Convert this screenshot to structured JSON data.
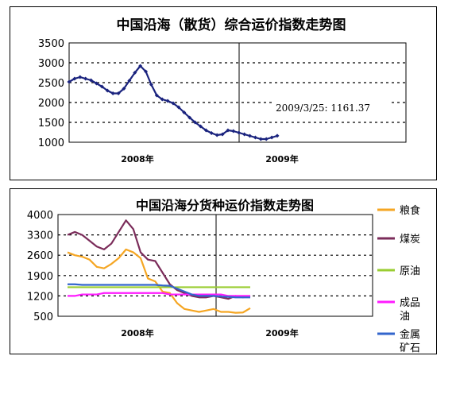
{
  "chart_data": [
    {
      "type": "line",
      "title": "中国沿海（散货）综合运价指数走势图",
      "ylim": [
        1000,
        3500
      ],
      "yticks": [
        "3500",
        "3000",
        "2500",
        "2000",
        "1500",
        "1000"
      ],
      "xtick_labels": [
        "2008年",
        "2009年"
      ],
      "grid": "dashed horizontal",
      "marker_line": "2009年",
      "annotation": "2009/3/25: 1161.37",
      "colors": {
        "series": "#1a237e"
      },
      "series": [
        {
          "values": [
            2520,
            2600,
            2640,
            2600,
            2560,
            2480,
            2400,
            2300,
            2230,
            2230,
            2350,
            2550,
            2750,
            2920,
            2780,
            2450,
            2180,
            2080,
            2040,
            1980,
            1880,
            1750,
            1620,
            1500,
            1400,
            1300,
            1230,
            1180,
            1200,
            1300,
            1280,
            1240,
            1200,
            1160,
            1120,
            1080,
            1080,
            1120,
            1161.37
          ]
        }
      ]
    },
    {
      "type": "line",
      "title": "中国沿海分货种运价指数走势图",
      "ylim": [
        500,
        4000
      ],
      "yticks": [
        "4000",
        "3300",
        "2600",
        "1900",
        "1200",
        "500"
      ],
      "xtick_labels": [
        "2008年",
        "2009年"
      ],
      "grid": "dashed horizontal",
      "legend_position": "right",
      "series": [
        {
          "name": "粮食",
          "color": "#f5a623",
          "values": [
            2700,
            2600,
            2550,
            2450,
            2200,
            2150,
            2300,
            2500,
            2800,
            2700,
            2500,
            1800,
            1700,
            1350,
            1300,
            950,
            750,
            700,
            650,
            700,
            750,
            650,
            650,
            620,
            630,
            780
          ]
        },
        {
          "name": "煤炭",
          "color": "#7b2c5a",
          "values": [
            3300,
            3400,
            3300,
            3100,
            2900,
            2800,
            3000,
            3400,
            3800,
            3500,
            2700,
            2450,
            2400,
            2000,
            1600,
            1400,
            1300,
            1200,
            1150,
            1150,
            1200,
            1150,
            1100,
            1200,
            1150,
            1200
          ]
        },
        {
          "name": "原油",
          "color": "#9acd32",
          "values": [
            1500,
            1500,
            1500,
            1500,
            1500,
            1500,
            1500,
            1500,
            1500,
            1500,
            1500,
            1500,
            1500,
            1500,
            1500,
            1500,
            1500,
            1500,
            1500,
            1500,
            1500,
            1500,
            1500,
            1500,
            1500,
            1500
          ]
        },
        {
          "name": "成品油",
          "color": "#ff1bff",
          "values": [
            1200,
            1200,
            1250,
            1250,
            1250,
            1300,
            1300,
            1300,
            1300,
            1300,
            1300,
            1300,
            1300,
            1300,
            1250,
            1250,
            1250,
            1250,
            1250,
            1250,
            1250,
            1250,
            1200,
            1200,
            1200,
            1200
          ]
        },
        {
          "name": "金属矿石",
          "color": "#3366cc",
          "values": [
            1600,
            1600,
            1580,
            1580,
            1580,
            1580,
            1580,
            1580,
            1580,
            1580,
            1580,
            1580,
            1580,
            1560,
            1550,
            1450,
            1350,
            1250,
            1200,
            1200,
            1200,
            1180,
            1170,
            1150,
            1150,
            1150
          ]
        }
      ]
    }
  ]
}
